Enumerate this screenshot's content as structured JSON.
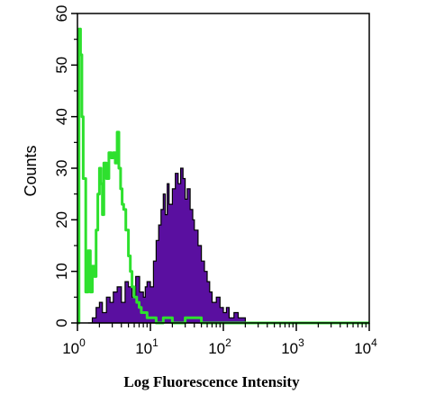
{
  "chart_data": {
    "type": "area",
    "title": "",
    "xlabel": "Log Fluorescence Intensity",
    "ylabel": "Counts",
    "xscale": "log",
    "xlim": [
      1,
      10000
    ],
    "ylim": [
      0,
      60
    ],
    "x_ticks": [
      {
        "base": "10",
        "exp": "0"
      },
      {
        "base": "10",
        "exp": "1"
      },
      {
        "base": "10",
        "exp": "2"
      },
      {
        "base": "10",
        "exp": "3"
      },
      {
        "base": "10",
        "exp": "4"
      }
    ],
    "y_ticks": [
      "0",
      "10",
      "20",
      "30",
      "40",
      "50",
      "60"
    ],
    "grid": false,
    "series": [
      {
        "style": "filled",
        "color": "#5a0fa0",
        "x": [
          1.4,
          1.6,
          1.8,
          2.0,
          2.2,
          2.5,
          2.8,
          3.1,
          3.5,
          4.0,
          4.5,
          5.0,
          5.6,
          6.3,
          7.1,
          8.0,
          8.5,
          9.0,
          10.0,
          11.0,
          12.0,
          13.0,
          14.0,
          15.0,
          16.0,
          17.0,
          18.0,
          20.0,
          22.0,
          24.0,
          26.0,
          28.0,
          30.0,
          32.0,
          35.0,
          38.0,
          40.0,
          45.0,
          50.0,
          55.0,
          60.0,
          65.0,
          70.0,
          80.0,
          90.0,
          100.0,
          110.0,
          120.0,
          140.0,
          160.0,
          180.0,
          200.0
        ],
        "y": [
          0,
          1,
          3,
          4,
          2,
          5,
          4,
          6,
          7,
          4,
          8,
          7,
          5,
          9,
          6,
          5,
          7,
          8,
          7,
          12,
          16,
          19,
          22,
          25,
          21,
          27,
          23,
          26,
          29,
          27,
          30,
          28,
          24,
          26,
          22,
          20,
          18,
          15,
          12,
          10,
          8,
          6,
          4,
          5,
          3,
          2,
          3,
          1,
          2,
          1,
          1,
          0
        ]
      },
      {
        "style": "line",
        "color": "#2ee02e",
        "x": [
          1.0,
          1.05,
          1.1,
          1.15,
          1.2,
          1.3,
          1.4,
          1.5,
          1.6,
          1.7,
          1.8,
          1.9,
          2.0,
          2.1,
          2.2,
          2.3,
          2.5,
          2.7,
          2.9,
          3.1,
          3.3,
          3.5,
          3.7,
          3.9,
          4.1,
          4.3,
          4.6,
          5.0,
          5.3,
          5.6,
          6.0,
          6.5,
          7.0,
          7.5,
          8.0,
          9.0,
          10.0,
          12.0,
          15.0,
          20.0,
          30.0,
          50.0,
          100.0,
          1000.0,
          10000.0
        ],
        "y": [
          0,
          57,
          52,
          40,
          28,
          6,
          14,
          6,
          11,
          9,
          18,
          25,
          30,
          27,
          21,
          31,
          28,
          33,
          32,
          33,
          31,
          37,
          30,
          26,
          23,
          22,
          18,
          13,
          10,
          7,
          5,
          4,
          3,
          2,
          2,
          1,
          1,
          0,
          1,
          0,
          1,
          0,
          0,
          0,
          0
        ]
      }
    ]
  }
}
